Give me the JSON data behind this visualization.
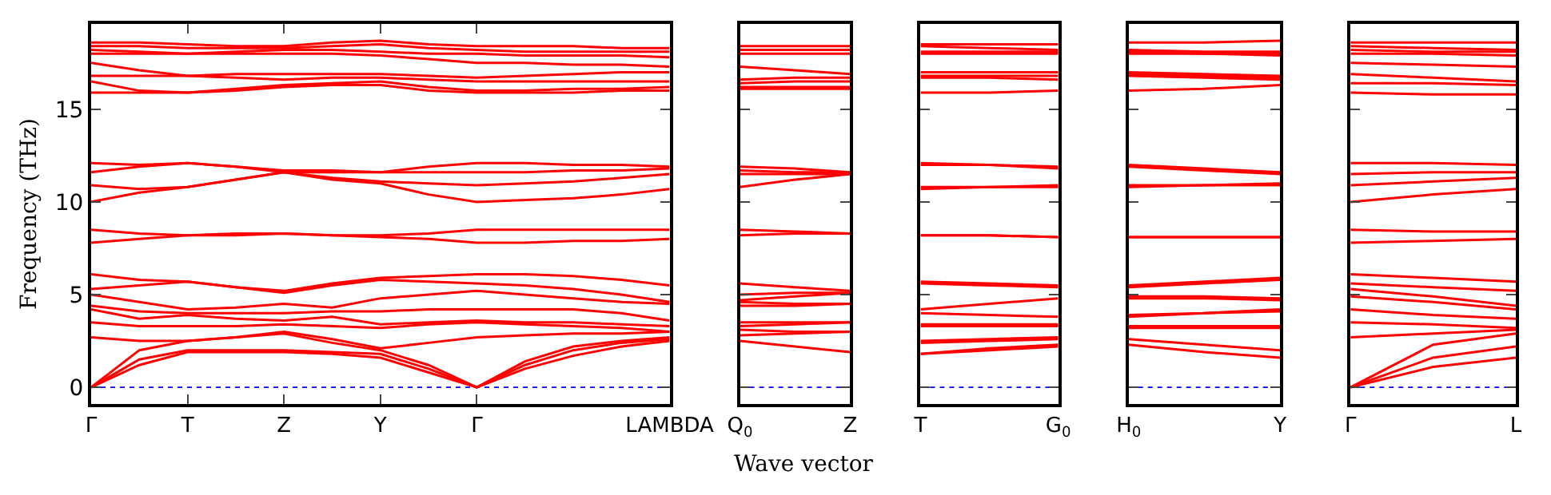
{
  "chart_data": [
    {
      "type": "line",
      "ylabel": "Frequency (THz)",
      "xlabel": "Wave vector",
      "categories": [
        "Γ",
        null,
        "T",
        null,
        "Z",
        null,
        "Y",
        null,
        "Γ",
        null,
        null,
        null,
        "LAMBDA"
      ],
      "ylim": [
        -0.9,
        19.6
      ],
      "yticks": [
        0,
        5,
        10,
        15
      ],
      "ref_lines": [
        {
          "axis": "y",
          "value": 0,
          "color": "#0000ff",
          "line_style": "dotted"
        }
      ],
      "series": [
        {
          "color": "#ff0000",
          "values": [
            0,
            1.2,
            1.9,
            1.9,
            1.9,
            1.8,
            1.6,
            0.8,
            0,
            1.0,
            1.7,
            2.2,
            2.5
          ]
        },
        {
          "color": "#ff0000",
          "values": [
            0,
            1.5,
            2.0,
            2.0,
            2.0,
            1.9,
            1.8,
            1.0,
            0,
            1.2,
            2.0,
            2.4,
            2.6
          ]
        },
        {
          "color": "#ff0000",
          "values": [
            0,
            2.0,
            2.5,
            2.7,
            2.9,
            2.4,
            2.0,
            1.2,
            0,
            1.4,
            2.2,
            2.5,
            2.7
          ]
        },
        {
          "color": "#ff0000",
          "values": [
            2.7,
            2.5,
            2.5,
            2.7,
            3.0,
            2.6,
            2.1,
            2.4,
            2.7,
            2.8,
            2.9,
            2.9,
            3.0
          ]
        },
        {
          "color": "#ff0000",
          "values": [
            3.5,
            3.3,
            3.3,
            3.3,
            3.4,
            3.3,
            3.2,
            3.4,
            3.5,
            3.4,
            3.3,
            3.2,
            3.0
          ]
        },
        {
          "color": "#ff0000",
          "values": [
            4.2,
            3.7,
            3.9,
            3.7,
            3.6,
            3.8,
            3.4,
            3.5,
            3.6,
            3.5,
            3.5,
            3.4,
            3.3
          ]
        },
        {
          "color": "#ff0000",
          "values": [
            4.4,
            4.1,
            4.0,
            4.0,
            4.0,
            4.1,
            4.1,
            4.2,
            4.2,
            4.2,
            4.2,
            4.0,
            3.6
          ]
        },
        {
          "color": "#ff0000",
          "values": [
            5.0,
            4.6,
            4.2,
            4.3,
            4.5,
            4.3,
            4.8,
            5.0,
            5.2,
            5.0,
            4.8,
            4.6,
            4.5
          ]
        },
        {
          "color": "#ff0000",
          "values": [
            5.3,
            5.5,
            5.7,
            5.4,
            5.1,
            5.5,
            5.8,
            5.7,
            5.6,
            5.5,
            5.3,
            5.0,
            4.6
          ]
        },
        {
          "color": "#ff0000",
          "values": [
            6.1,
            5.8,
            5.7,
            5.4,
            5.2,
            5.6,
            5.9,
            6.0,
            6.1,
            6.1,
            6.0,
            5.8,
            5.5
          ]
        },
        {
          "color": "#ff0000",
          "values": [
            7.8,
            8.0,
            8.2,
            8.2,
            8.3,
            8.2,
            8.1,
            8.0,
            7.8,
            7.8,
            7.9,
            7.9,
            8.0
          ]
        },
        {
          "color": "#ff0000",
          "values": [
            8.5,
            8.3,
            8.2,
            8.3,
            8.3,
            8.2,
            8.2,
            8.3,
            8.5,
            8.5,
            8.5,
            8.5,
            8.5
          ]
        },
        {
          "color": "#ff0000",
          "values": [
            10.0,
            10.5,
            10.8,
            11.2,
            11.6,
            11.2,
            11.0,
            10.4,
            10.0,
            10.1,
            10.2,
            10.4,
            10.7
          ]
        },
        {
          "color": "#ff0000",
          "values": [
            10.9,
            10.7,
            10.8,
            11.2,
            11.6,
            11.3,
            11.1,
            11.0,
            10.9,
            11.0,
            11.1,
            11.3,
            11.5
          ]
        },
        {
          "color": "#ff0000",
          "values": [
            11.6,
            11.9,
            12.1,
            11.9,
            11.6,
            11.6,
            11.6,
            11.6,
            11.6,
            11.6,
            11.7,
            11.7,
            11.8
          ]
        },
        {
          "color": "#ff0000",
          "values": [
            12.1,
            12.0,
            12.1,
            11.9,
            11.7,
            11.7,
            11.6,
            11.9,
            12.1,
            12.1,
            12.0,
            12.0,
            11.9
          ]
        },
        {
          "color": "#ff0000",
          "values": [
            15.9,
            15.9,
            15.9,
            16.0,
            16.2,
            16.3,
            16.3,
            16.0,
            15.9,
            15.9,
            15.9,
            16.0,
            16.0
          ]
        },
        {
          "color": "#ff0000",
          "values": [
            16.5,
            16.0,
            15.9,
            16.1,
            16.3,
            16.4,
            16.5,
            16.2,
            16.0,
            16.0,
            16.1,
            16.1,
            16.2
          ]
        },
        {
          "color": "#ff0000",
          "values": [
            16.8,
            16.8,
            16.8,
            16.7,
            16.6,
            16.7,
            16.7,
            16.6,
            16.5,
            16.5,
            16.5,
            16.5,
            16.5
          ]
        },
        {
          "color": "#ff0000",
          "values": [
            17.5,
            17.1,
            16.8,
            16.9,
            16.9,
            16.9,
            16.9,
            16.8,
            16.7,
            16.8,
            16.9,
            17.0,
            17.0
          ]
        },
        {
          "color": "#ff0000",
          "values": [
            18.0,
            18.0,
            18.0,
            18.0,
            18.0,
            18.0,
            17.9,
            17.7,
            17.5,
            17.5,
            17.4,
            17.4,
            17.3
          ]
        },
        {
          "color": "#ff0000",
          "values": [
            18.2,
            18.1,
            18.0,
            18.1,
            18.2,
            18.2,
            18.1,
            18.0,
            18.0,
            17.9,
            17.9,
            17.9,
            17.8
          ]
        },
        {
          "color": "#ff0000",
          "values": [
            18.4,
            18.4,
            18.3,
            18.3,
            18.3,
            18.4,
            18.5,
            18.3,
            18.2,
            18.1,
            18.1,
            18.1,
            18.1
          ]
        },
        {
          "color": "#ff0000",
          "values": [
            18.6,
            18.6,
            18.5,
            18.4,
            18.4,
            18.6,
            18.7,
            18.5,
            18.4,
            18.4,
            18.4,
            18.3,
            18.3
          ]
        }
      ]
    },
    {
      "type": "line",
      "categories": [
        "Q$_{0}$",
        null,
        "Z"
      ],
      "ylim": [
        -0.9,
        19.6
      ],
      "yticks": [
        0,
        5,
        10,
        15
      ],
      "tick_labels": "x",
      "ref_lines": [
        {
          "axis": "y",
          "value": 0,
          "color": "#0000ff",
          "line_style": "dotted"
        }
      ],
      "series": [
        {
          "color": "#ff0000",
          "values": [
            2.5,
            2.2,
            1.9
          ]
        },
        {
          "color": "#ff0000",
          "values": [
            2.8,
            2.9,
            3.0
          ]
        },
        {
          "color": "#ff0000",
          "values": [
            3.1,
            3.0,
            3.0
          ]
        },
        {
          "color": "#ff0000",
          "values": [
            3.3,
            3.4,
            3.5
          ]
        },
        {
          "color": "#ff0000",
          "values": [
            3.5,
            3.5,
            3.5
          ]
        },
        {
          "color": "#ff0000",
          "values": [
            4.4,
            4.4,
            4.5
          ]
        },
        {
          "color": "#ff0000",
          "values": [
            4.6,
            4.5,
            4.5
          ]
        },
        {
          "color": "#ff0000",
          "values": [
            4.7,
            4.9,
            5.1
          ]
        },
        {
          "color": "#ff0000",
          "values": [
            5.0,
            5.1,
            5.1
          ]
        },
        {
          "color": "#ff0000",
          "values": [
            5.6,
            5.4,
            5.2
          ]
        },
        {
          "color": "#ff0000",
          "values": [
            8.2,
            8.3,
            8.3
          ]
        },
        {
          "color": "#ff0000",
          "values": [
            8.5,
            8.4,
            8.3
          ]
        },
        {
          "color": "#ff0000",
          "values": [
            10.8,
            11.2,
            11.5
          ]
        },
        {
          "color": "#ff0000",
          "values": [
            11.5,
            11.5,
            11.5
          ]
        },
        {
          "color": "#ff0000",
          "values": [
            11.7,
            11.6,
            11.6
          ]
        },
        {
          "color": "#ff0000",
          "values": [
            11.9,
            11.8,
            11.6
          ]
        },
        {
          "color": "#ff0000",
          "values": [
            16.1,
            16.1,
            16.1
          ]
        },
        {
          "color": "#ff0000",
          "values": [
            16.2,
            16.2,
            16.2
          ]
        },
        {
          "color": "#ff0000",
          "values": [
            16.4,
            16.5,
            16.5
          ]
        },
        {
          "color": "#ff0000",
          "values": [
            16.6,
            16.7,
            16.7
          ]
        },
        {
          "color": "#ff0000",
          "values": [
            17.3,
            17.1,
            16.9
          ]
        },
        {
          "color": "#ff0000",
          "values": [
            18.0,
            18.0,
            18.0
          ]
        },
        {
          "color": "#ff0000",
          "values": [
            18.2,
            18.2,
            18.2
          ]
        },
        {
          "color": "#ff0000",
          "values": [
            18.4,
            18.4,
            18.4
          ]
        }
      ]
    },
    {
      "type": "line",
      "categories": [
        "T",
        null,
        "G$_{0}$"
      ],
      "ylim": [
        -0.9,
        19.6
      ],
      "yticks": [
        0,
        5,
        10,
        15
      ],
      "tick_labels": "x",
      "ref_lines": [
        {
          "axis": "y",
          "value": 0,
          "color": "#0000ff",
          "line_style": "dotted"
        }
      ],
      "series": [
        {
          "color": "#ff0000",
          "values": [
            1.8,
            2.0,
            2.2
          ]
        },
        {
          "color": "#ff0000",
          "values": [
            1.8,
            2.1,
            2.3
          ]
        },
        {
          "color": "#ff0000",
          "values": [
            2.4,
            2.5,
            2.6
          ]
        },
        {
          "color": "#ff0000",
          "values": [
            2.5,
            2.6,
            2.7
          ]
        },
        {
          "color": "#ff0000",
          "values": [
            3.3,
            3.3,
            3.3
          ]
        },
        {
          "color": "#ff0000",
          "values": [
            3.4,
            3.4,
            3.4
          ]
        },
        {
          "color": "#ff0000",
          "values": [
            4.0,
            3.9,
            3.8
          ]
        },
        {
          "color": "#ff0000",
          "values": [
            4.2,
            4.5,
            4.8
          ]
        },
        {
          "color": "#ff0000",
          "values": [
            5.6,
            5.5,
            5.4
          ]
        },
        {
          "color": "#ff0000",
          "values": [
            5.7,
            5.6,
            5.5
          ]
        },
        {
          "color": "#ff0000",
          "values": [
            8.2,
            8.2,
            8.1
          ]
        },
        {
          "color": "#ff0000",
          "values": [
            8.2,
            8.2,
            8.1
          ]
        },
        {
          "color": "#ff0000",
          "values": [
            10.7,
            10.8,
            10.8
          ]
        },
        {
          "color": "#ff0000",
          "values": [
            10.8,
            10.8,
            10.9
          ]
        },
        {
          "color": "#ff0000",
          "values": [
            12.0,
            12.0,
            11.8
          ]
        },
        {
          "color": "#ff0000",
          "values": [
            12.1,
            12.0,
            11.9
          ]
        },
        {
          "color": "#ff0000",
          "values": [
            15.9,
            15.9,
            16.0
          ]
        },
        {
          "color": "#ff0000",
          "values": [
            16.7,
            16.7,
            16.6
          ]
        },
        {
          "color": "#ff0000",
          "values": [
            16.8,
            16.8,
            16.8
          ]
        },
        {
          "color": "#ff0000",
          "values": [
            17.0,
            17.0,
            17.0
          ]
        },
        {
          "color": "#ff0000",
          "values": [
            18.0,
            18.0,
            18.0
          ]
        },
        {
          "color": "#ff0000",
          "values": [
            18.1,
            18.1,
            18.1
          ]
        },
        {
          "color": "#ff0000",
          "values": [
            18.4,
            18.3,
            18.2
          ]
        },
        {
          "color": "#ff0000",
          "values": [
            18.5,
            18.5,
            18.5
          ]
        }
      ]
    },
    {
      "type": "line",
      "categories": [
        "H$_{0}$",
        null,
        "Y"
      ],
      "ylim": [
        -0.9,
        19.6
      ],
      "yticks": [
        0,
        5,
        10,
        15
      ],
      "tick_labels": "x",
      "ref_lines": [
        {
          "axis": "y",
          "value": 0,
          "color": "#0000ff",
          "line_style": "dotted"
        }
      ],
      "series": [
        {
          "color": "#ff0000",
          "values": [
            2.3,
            1.9,
            1.6
          ]
        },
        {
          "color": "#ff0000",
          "values": [
            2.6,
            2.3,
            2.0
          ]
        },
        {
          "color": "#ff0000",
          "values": [
            3.2,
            3.2,
            3.2
          ]
        },
        {
          "color": "#ff0000",
          "values": [
            3.3,
            3.3,
            3.3
          ]
        },
        {
          "color": "#ff0000",
          "values": [
            3.8,
            4.0,
            4.1
          ]
        },
        {
          "color": "#ff0000",
          "values": [
            3.9,
            4.0,
            4.2
          ]
        },
        {
          "color": "#ff0000",
          "values": [
            4.8,
            4.8,
            4.7
          ]
        },
        {
          "color": "#ff0000",
          "values": [
            4.9,
            4.9,
            4.8
          ]
        },
        {
          "color": "#ff0000",
          "values": [
            5.4,
            5.6,
            5.8
          ]
        },
        {
          "color": "#ff0000",
          "values": [
            5.5,
            5.7,
            5.9
          ]
        },
        {
          "color": "#ff0000",
          "values": [
            8.1,
            8.1,
            8.1
          ]
        },
        {
          "color": "#ff0000",
          "values": [
            8.1,
            8.1,
            8.1
          ]
        },
        {
          "color": "#ff0000",
          "values": [
            10.8,
            10.9,
            10.9
          ]
        },
        {
          "color": "#ff0000",
          "values": [
            10.9,
            10.9,
            11.0
          ]
        },
        {
          "color": "#ff0000",
          "values": [
            11.9,
            11.7,
            11.5
          ]
        },
        {
          "color": "#ff0000",
          "values": [
            12.0,
            11.8,
            11.6
          ]
        },
        {
          "color": "#ff0000",
          "values": [
            16.0,
            16.1,
            16.3
          ]
        },
        {
          "color": "#ff0000",
          "values": [
            16.8,
            16.7,
            16.6
          ]
        },
        {
          "color": "#ff0000",
          "values": [
            16.9,
            16.8,
            16.7
          ]
        },
        {
          "color": "#ff0000",
          "values": [
            17.0,
            16.9,
            16.8
          ]
        },
        {
          "color": "#ff0000",
          "values": [
            18.0,
            18.0,
            17.9
          ]
        },
        {
          "color": "#ff0000",
          "values": [
            18.1,
            18.0,
            18.0
          ]
        },
        {
          "color": "#ff0000",
          "values": [
            18.2,
            18.1,
            18.1
          ]
        },
        {
          "color": "#ff0000",
          "values": [
            18.6,
            18.6,
            18.7
          ]
        }
      ]
    },
    {
      "type": "line",
      "categories": [
        "Γ",
        null,
        "L"
      ],
      "ylim": [
        -0.9,
        19.6
      ],
      "yticks": [
        0,
        5,
        10,
        15
      ],
      "tick_labels": "x",
      "ref_lines": [
        {
          "axis": "y",
          "value": 0,
          "color": "#0000ff",
          "line_style": "dotted"
        }
      ],
      "series": [
        {
          "color": "#ff0000",
          "values": [
            0,
            1.1,
            1.6
          ]
        },
        {
          "color": "#ff0000",
          "values": [
            0,
            1.6,
            2.2
          ]
        },
        {
          "color": "#ff0000",
          "values": [
            0,
            2.3,
            2.9
          ]
        },
        {
          "color": "#ff0000",
          "values": [
            2.7,
            2.9,
            3.1
          ]
        },
        {
          "color": "#ff0000",
          "values": [
            3.5,
            3.4,
            3.2
          ]
        },
        {
          "color": "#ff0000",
          "values": [
            4.2,
            3.9,
            3.7
          ]
        },
        {
          "color": "#ff0000",
          "values": [
            4.9,
            4.6,
            4.2
          ]
        },
        {
          "color": "#ff0000",
          "values": [
            5.3,
            4.9,
            4.4
          ]
        },
        {
          "color": "#ff0000",
          "values": [
            5.6,
            5.4,
            5.2
          ]
        },
        {
          "color": "#ff0000",
          "values": [
            6.1,
            5.9,
            5.7
          ]
        },
        {
          "color": "#ff0000",
          "values": [
            7.8,
            7.9,
            8.0
          ]
        },
        {
          "color": "#ff0000",
          "values": [
            8.5,
            8.4,
            8.4
          ]
        },
        {
          "color": "#ff0000",
          "values": [
            10.0,
            10.4,
            10.7
          ]
        },
        {
          "color": "#ff0000",
          "values": [
            10.9,
            11.1,
            11.3
          ]
        },
        {
          "color": "#ff0000",
          "values": [
            11.5,
            11.6,
            11.6
          ]
        },
        {
          "color": "#ff0000",
          "values": [
            12.1,
            12.1,
            12.0
          ]
        },
        {
          "color": "#ff0000",
          "values": [
            15.9,
            15.8,
            15.8
          ]
        },
        {
          "color": "#ff0000",
          "values": [
            16.4,
            16.4,
            16.3
          ]
        },
        {
          "color": "#ff0000",
          "values": [
            16.9,
            16.7,
            16.5
          ]
        },
        {
          "color": "#ff0000",
          "values": [
            17.5,
            17.4,
            17.3
          ]
        },
        {
          "color": "#ff0000",
          "values": [
            18.0,
            18.0,
            17.9
          ]
        },
        {
          "color": "#ff0000",
          "values": [
            18.2,
            18.1,
            18.1
          ]
        },
        {
          "color": "#ff0000",
          "values": [
            18.4,
            18.3,
            18.2
          ]
        },
        {
          "color": "#ff0000",
          "values": [
            18.6,
            18.6,
            18.6
          ]
        }
      ]
    }
  ]
}
